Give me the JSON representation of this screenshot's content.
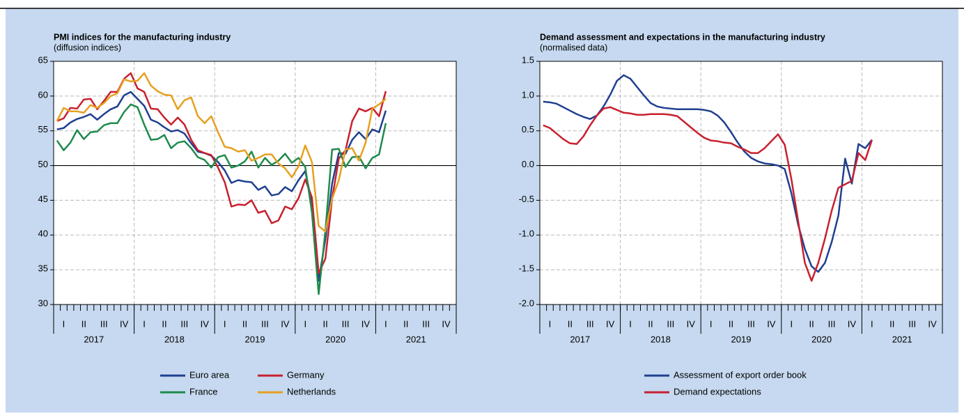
{
  "chart_data": [
    {
      "type": "line",
      "title": "PMI indices for the manufacturing industry",
      "subtitle": "(diffusion indices)",
      "categories": [
        null,
        "I",
        null,
        null,
        "II",
        null,
        null,
        "III",
        null,
        null,
        "IV",
        null,
        null,
        "I",
        null,
        null,
        "II",
        null,
        null,
        "III",
        null,
        null,
        "IV",
        null,
        null,
        "I",
        null,
        null,
        "II",
        null,
        null,
        "III",
        null,
        null,
        "IV",
        null,
        null,
        "I",
        null,
        null,
        "II",
        null,
        null,
        "III",
        null,
        null,
        "IV",
        null,
        null,
        "I",
        null,
        null,
        "II",
        null,
        null,
        "III",
        null,
        null,
        "IV",
        null
      ],
      "years": [
        "2017",
        "2018",
        "2019",
        "2020",
        "2021"
      ],
      "ylim": [
        30,
        65
      ],
      "yticks": [
        30,
        35,
        40,
        45,
        50,
        55,
        60,
        65
      ],
      "grid": true,
      "reference_line": 50,
      "series": [
        {
          "name": "Euro area",
          "color": "#1f3f8f",
          "values": [
            55.2,
            55.4,
            56.2,
            56.7,
            57.0,
            57.4,
            56.6,
            57.4,
            58.1,
            58.5,
            60.1,
            60.6,
            59.6,
            58.6,
            56.6,
            56.2,
            55.5,
            54.9,
            55.1,
            54.6,
            53.2,
            52.0,
            51.8,
            51.4,
            50.5,
            49.3,
            47.5,
            47.9,
            47.7,
            47.6,
            46.5,
            47.0,
            45.7,
            45.9,
            46.9,
            46.3,
            47.9,
            49.2,
            44.5,
            33.4,
            39.4,
            47.4,
            51.8,
            51.7,
            53.7,
            54.8,
            53.8,
            55.2,
            54.8,
            57.9,
            null,
            null,
            null,
            null,
            null,
            null,
            null,
            null,
            null,
            null
          ]
        },
        {
          "name": "Germany",
          "color": "#c8202e",
          "values": [
            56.4,
            56.8,
            58.3,
            58.2,
            59.5,
            59.6,
            58.1,
            59.3,
            60.6,
            60.6,
            62.5,
            63.3,
            61.1,
            60.6,
            58.2,
            58.1,
            56.9,
            55.9,
            56.9,
            55.9,
            53.7,
            52.2,
            51.8,
            51.5,
            49.7,
            47.6,
            44.1,
            44.4,
            44.3,
            45.0,
            43.2,
            43.5,
            41.7,
            42.1,
            44.1,
            43.7,
            45.3,
            48.0,
            45.4,
            34.5,
            36.6,
            45.2,
            51.0,
            52.2,
            56.4,
            58.2,
            57.8,
            58.3,
            57.1,
            60.7,
            null,
            null,
            null,
            null,
            null,
            null,
            null,
            null,
            null,
            null
          ]
        },
        {
          "name": "France",
          "color": "#1f8a4c",
          "values": [
            53.6,
            52.2,
            53.3,
            55.1,
            53.8,
            54.8,
            54.9,
            55.8,
            56.1,
            56.1,
            57.7,
            58.8,
            58.4,
            55.9,
            53.7,
            53.8,
            54.4,
            52.5,
            53.3,
            53.5,
            52.5,
            51.2,
            50.8,
            49.7,
            51.2,
            51.5,
            49.7,
            50.0,
            50.6,
            52.0,
            49.7,
            51.1,
            50.1,
            50.7,
            51.7,
            50.4,
            51.1,
            49.8,
            43.2,
            31.5,
            40.6,
            52.3,
            52.4,
            49.8,
            51.2,
            51.3,
            49.6,
            51.1,
            51.6,
            56.1,
            null,
            null,
            null,
            null,
            null,
            null,
            null,
            null,
            null,
            null
          ]
        },
        {
          "name": "Netherlands",
          "color": "#e6a020",
          "values": [
            56.4,
            58.3,
            57.8,
            57.8,
            57.6,
            58.7,
            58.3,
            59.0,
            60.0,
            60.4,
            62.4,
            62.1,
            62.2,
            63.3,
            61.5,
            60.7,
            60.2,
            60.1,
            58.1,
            59.4,
            59.8,
            57.1,
            56.1,
            57.1,
            54.8,
            52.7,
            52.5,
            52.0,
            52.2,
            50.7,
            51.1,
            51.6,
            51.6,
            50.3,
            49.6,
            48.3,
            49.9,
            52.9,
            50.5,
            41.3,
            40.5,
            45.2,
            47.9,
            52.3,
            52.5,
            50.7,
            53.3,
            58.2,
            58.8,
            59.6,
            null,
            null,
            null,
            null,
            null,
            null,
            null,
            null,
            null,
            null
          ]
        }
      ]
    },
    {
      "type": "line",
      "title": "Demand assessment and expectations in the manufacturing industry",
      "subtitle": "(normalised data)",
      "categories": [
        null,
        "I",
        null,
        null,
        "II",
        null,
        null,
        "III",
        null,
        null,
        "IV",
        null,
        null,
        "I",
        null,
        null,
        "II",
        null,
        null,
        "III",
        null,
        null,
        "IV",
        null,
        null,
        "I",
        null,
        null,
        "II",
        null,
        null,
        "III",
        null,
        null,
        "IV",
        null,
        null,
        "I",
        null,
        null,
        "II",
        null,
        null,
        "III",
        null,
        null,
        "IV",
        null,
        null,
        "I",
        null,
        null,
        "II",
        null,
        null,
        "III",
        null,
        null,
        "IV",
        null
      ],
      "years": [
        "2017",
        "2018",
        "2019",
        "2020",
        "2021"
      ],
      "ylim": [
        -2,
        1.5
      ],
      "yticks": [
        {
          "value": -2,
          "label": "-2.0"
        },
        -1.5,
        {
          "value": -1,
          "label": "-1.0"
        },
        -0.5,
        {
          "value": 0,
          "label": "0.0"
        },
        0.5,
        {
          "value": 1,
          "label": "1.0"
        },
        1.5
      ],
      "grid": true,
      "reference_line": 0,
      "series": [
        {
          "name": "Assessment of export order book",
          "color": "#1f3f8f",
          "values": [
            0.92,
            0.91,
            0.89,
            0.84,
            0.79,
            0.74,
            0.7,
            0.67,
            0.72,
            0.85,
            1.02,
            1.22,
            1.3,
            1.25,
            1.13,
            1.01,
            0.9,
            0.85,
            0.83,
            0.82,
            0.81,
            0.81,
            0.81,
            0.81,
            0.8,
            0.78,
            0.72,
            0.62,
            0.48,
            0.33,
            0.2,
            0.11,
            0.06,
            0.03,
            0.02,
            0.0,
            -0.05,
            -0.4,
            -0.85,
            -1.2,
            -1.45,
            -1.53,
            -1.4,
            -1.1,
            -0.72,
            0.1,
            -0.26,
            0.31,
            0.25,
            0.37,
            null,
            null,
            null,
            null,
            null,
            null,
            null,
            null,
            null,
            null
          ]
        },
        {
          "name": "Demand expectations",
          "color": "#c8202e",
          "values": [
            0.58,
            0.54,
            0.46,
            0.38,
            0.32,
            0.31,
            0.42,
            0.58,
            0.72,
            0.82,
            0.84,
            0.8,
            0.76,
            0.75,
            0.73,
            0.73,
            0.74,
            0.74,
            0.74,
            0.73,
            0.71,
            0.63,
            0.55,
            0.47,
            0.4,
            0.36,
            0.35,
            0.33,
            0.32,
            0.27,
            0.23,
            0.18,
            0.18,
            0.25,
            0.35,
            0.45,
            0.3,
            -0.2,
            -0.8,
            -1.4,
            -1.66,
            -1.4,
            -1.05,
            -0.65,
            -0.32,
            -0.27,
            -0.22,
            0.18,
            0.08,
            0.37,
            null,
            null,
            null,
            null,
            null,
            null,
            null,
            null,
            null,
            null
          ]
        }
      ]
    }
  ]
}
